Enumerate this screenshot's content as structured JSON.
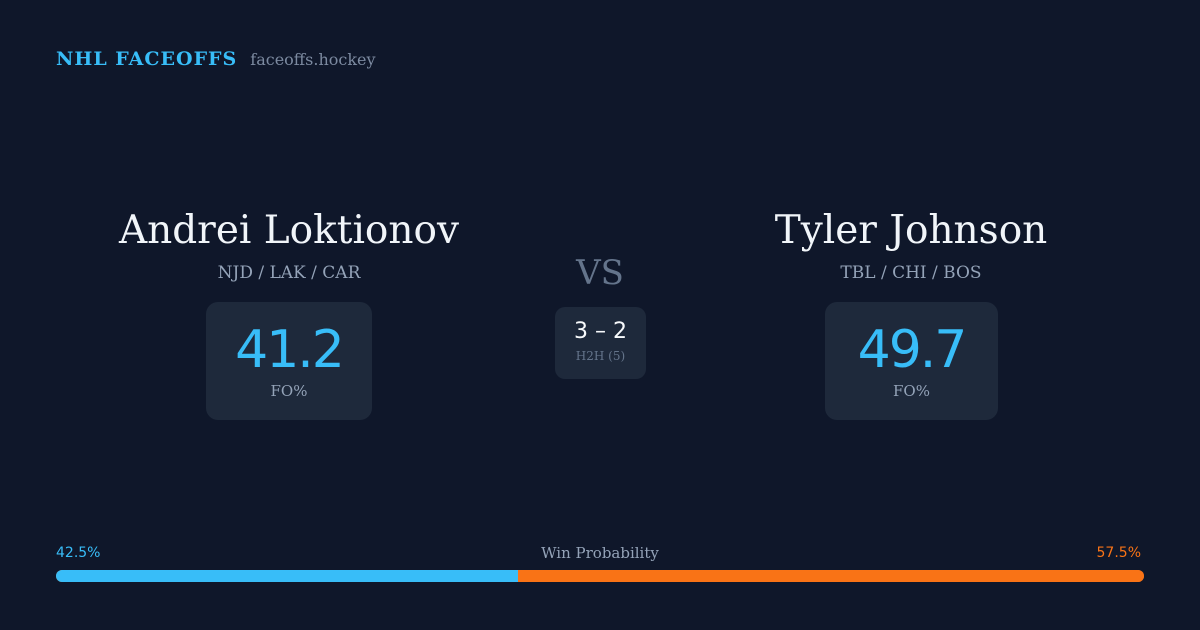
{
  "brand": {
    "name": "NHL FACEOFFS",
    "domain": "faceoffs.hockey"
  },
  "player_left": {
    "name": "Andrei Loktionov",
    "teams": "NJD / LAK / CAR",
    "stat_value": "41.2",
    "stat_label": "FO%"
  },
  "player_right": {
    "name": "Tyler Johnson",
    "teams": "TBL / CHI / BOS",
    "stat_value": "49.7",
    "stat_label": "FO%"
  },
  "versus": {
    "label": "VS",
    "score": "3 – 2",
    "label_small": "H2H (5)"
  },
  "win_probability": {
    "title": "Win Probability",
    "left_label": "42.5%",
    "right_label": "57.5%",
    "left_fraction": 0.425,
    "right_fraction": 0.575
  },
  "colors": {
    "background": "#0f172a",
    "card": "#1e293b",
    "accent_left": "#38bdf8",
    "accent_right": "#f97316"
  }
}
